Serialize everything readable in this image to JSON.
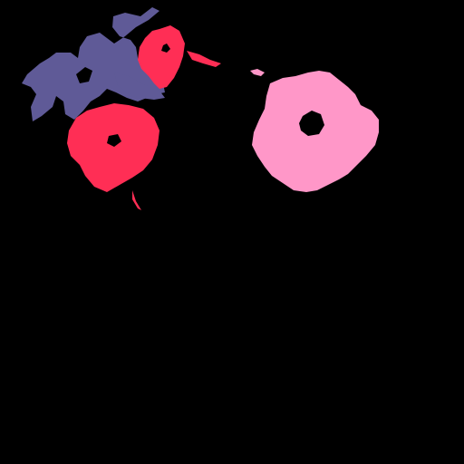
{
  "scene": {
    "background_color": "#000000",
    "colors": {
      "purple_flower": "#5f5a97",
      "red_flower": "#ff2e55",
      "pink_flower": "#ff97c8",
      "dark_detail": "#000000"
    }
  }
}
